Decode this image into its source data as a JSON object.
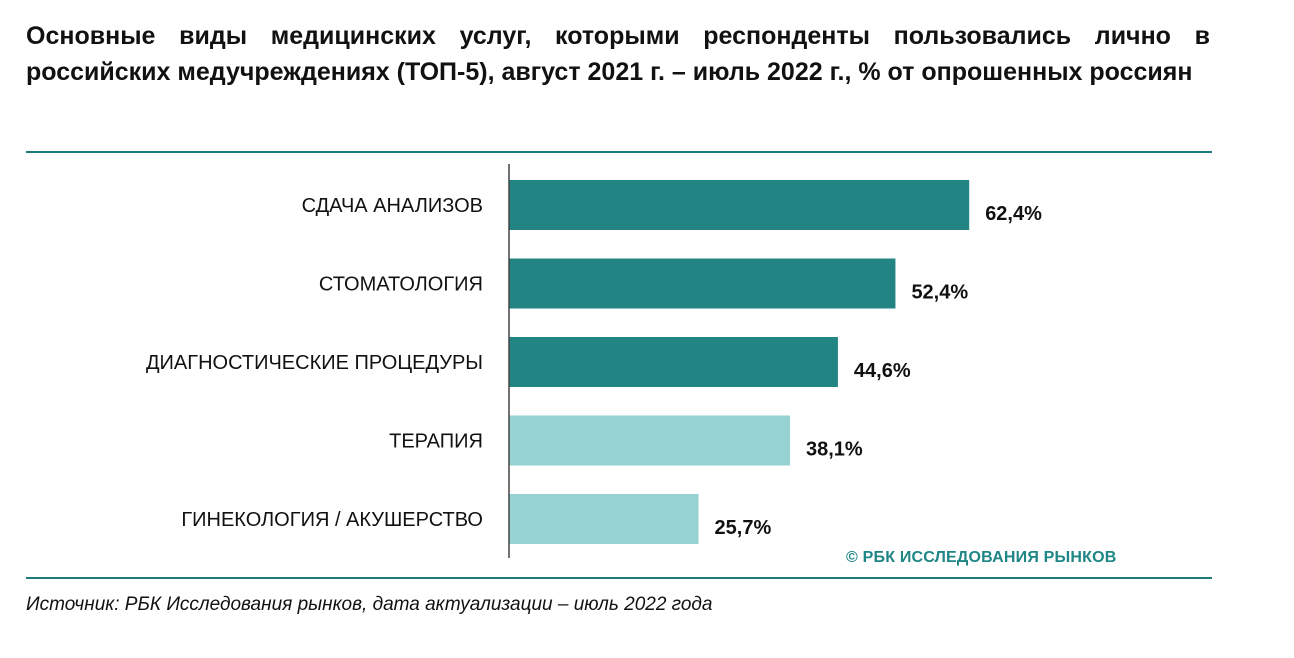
{
  "colors": {
    "dark": "#238484",
    "light": "#97d2d2",
    "accent": "#1f7a7a"
  },
  "chart_data": {
    "type": "bar",
    "orientation": "horizontal",
    "title": "Основные виды медицинских услуг, которыми респонденты пользовались лично в российских медучреждениях (ТОП-5), август 2021 г. – июль 2022 г., % от опрошенных россиян",
    "categories": [
      "СДАЧА АНАЛИЗОВ",
      "СТОМАТОЛОГИЯ",
      "ДИАГНОСТИЧЕСКИЕ ПРОЦЕДУРЫ",
      "ТЕРАПИЯ",
      "ГИНЕКОЛОГИЯ / АКУШЕРСТВО"
    ],
    "values": [
      62.4,
      52.4,
      44.6,
      38.1,
      25.7
    ],
    "value_labels": [
      "62,4%",
      "52,4%",
      "44,6%",
      "38,1%",
      "25,7%"
    ],
    "bar_color_keys": [
      "dark",
      "dark",
      "dark",
      "light",
      "light"
    ],
    "xlim": [
      0,
      100
    ],
    "grid": false,
    "legend": "none"
  },
  "watermark": "© РБК ИССЛЕДОВАНИЯ РЫНКОВ",
  "source": "Источник: РБК Исследования рынков, дата актуализации – июль 2022 года"
}
